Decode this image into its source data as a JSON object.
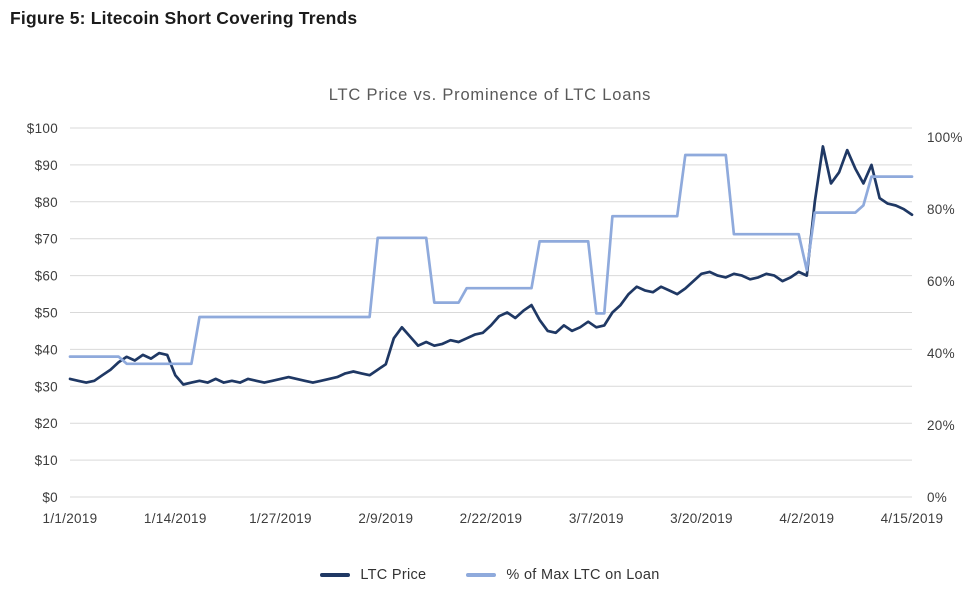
{
  "figure_title": "Figure 5: Litecoin Short Covering Trends",
  "chart_data": {
    "type": "line",
    "title": "LTC Price vs. Prominence of LTC Loans",
    "grid": "horizontal",
    "grid_color": "#d9d9d9",
    "legend_position": "bottom",
    "x_axis": {
      "unit": "daily dates",
      "start": "1/1/2019",
      "end": "4/15/2019",
      "tick_labels": [
        "1/1/2019",
        "1/14/2019",
        "1/27/2019",
        "2/9/2019",
        "2/22/2019",
        "3/7/2019",
        "3/20/2019",
        "4/2/2019",
        "4/15/2019"
      ],
      "tick_days": [
        0,
        13,
        26,
        39,
        52,
        65,
        78,
        91,
        104
      ],
      "total_days": 104
    },
    "left_axis": {
      "ticks": [
        "$0",
        "$10",
        "$20",
        "$30",
        "$40",
        "$50",
        "$60",
        "$70",
        "$80",
        "$90",
        "$100"
      ],
      "values": [
        0,
        10,
        20,
        30,
        40,
        50,
        60,
        70,
        80,
        90,
        100
      ],
      "range": [
        0,
        100
      ],
      "unit": "USD"
    },
    "right_axis": {
      "ticks": [
        "0%",
        "20%",
        "40%",
        "60%",
        "80%",
        "100%"
      ],
      "values": [
        0,
        20,
        40,
        60,
        80,
        100
      ],
      "range": [
        0,
        100
      ],
      "unit": "percent"
    },
    "series": [
      {
        "name": "LTC Price",
        "slug": "ltc-price",
        "axis": "left",
        "color": "#1f3864",
        "values": [
          32,
          31.5,
          31,
          31.5,
          33,
          34.5,
          36.5,
          38,
          37,
          38.5,
          37.5,
          39,
          38.5,
          33,
          30.5,
          31,
          31.5,
          31,
          32,
          31,
          31.5,
          31,
          32,
          31.5,
          31,
          31.5,
          32,
          32.5,
          32,
          31.5,
          31,
          31.5,
          32,
          32.5,
          33.5,
          34,
          33.5,
          33,
          34.5,
          36,
          43,
          46,
          43.5,
          41,
          42,
          41,
          41.5,
          42.5,
          42,
          43,
          44,
          44.5,
          46.5,
          49,
          50,
          48.5,
          50.5,
          52,
          48,
          45,
          44.5,
          46.5,
          45,
          46,
          47.5,
          46,
          46.5,
          50,
          52,
          55,
          57,
          56,
          55.5,
          57,
          56,
          55,
          56.5,
          58.5,
          60.5,
          61,
          60,
          59.5,
          60.5,
          60,
          59,
          59.5,
          60.5,
          60,
          58.5,
          59.5,
          61,
          60,
          80,
          95,
          85,
          88,
          94,
          89,
          85,
          90,
          81,
          79.5,
          79,
          78,
          76.5
        ]
      },
      {
        "name": "% of Max LTC on Loan",
        "slug": "pct-max-ltc-on-loan",
        "axis": "right",
        "color": "#8faadc",
        "values": [
          39,
          39,
          39,
          39,
          39,
          39,
          39,
          37,
          37,
          37,
          37,
          37,
          37,
          37,
          37,
          37,
          50,
          50,
          50,
          50,
          50,
          50,
          50,
          50,
          50,
          50,
          50,
          50,
          50,
          50,
          50,
          50,
          50,
          50,
          50,
          50,
          50,
          50,
          72,
          72,
          72,
          72,
          72,
          72,
          72,
          54,
          54,
          54,
          54,
          58,
          58,
          58,
          58,
          58,
          58,
          58,
          58,
          58,
          71,
          71,
          71,
          71,
          71,
          71,
          71,
          51,
          51,
          78,
          78,
          78,
          78,
          78,
          78,
          78,
          78,
          78,
          95,
          95,
          95,
          95,
          95,
          95,
          73,
          73,
          73,
          73,
          73,
          73,
          73,
          73,
          73,
          63,
          79,
          79,
          79,
          79,
          79,
          79,
          81,
          89,
          89,
          89,
          89,
          89,
          89
        ]
      }
    ]
  }
}
